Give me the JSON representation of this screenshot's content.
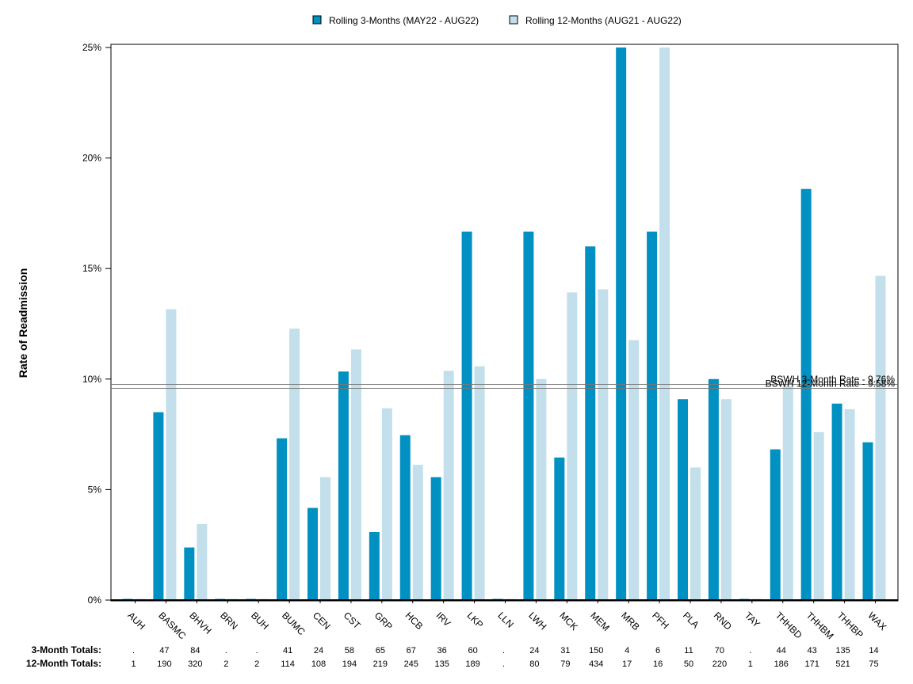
{
  "chart_data": {
    "type": "bar",
    "ylabel": "Rate of Readmission",
    "ylim": [
      0,
      25
    ],
    "y_ticks": [
      "0%",
      "5%",
      "10%",
      "15%",
      "20%",
      "25%"
    ],
    "categories": [
      "AUH",
      "BASMC",
      "BHVH",
      "BRN",
      "BUH",
      "BUMC",
      "CEN",
      "CST",
      "GRP",
      "HCB",
      "IRV",
      "LKP",
      "LLN",
      "LWH",
      "MCK",
      "MEM",
      "MRB",
      "PFH",
      "PLA",
      "RND",
      "TAY",
      "THHBD",
      "THHBM",
      "THHBP",
      "WAX"
    ],
    "series": [
      {
        "name": "Rolling 3-Months (MAY22 - AUG22)",
        "color": "#0091c2",
        "values": [
          0,
          8.5,
          2.38,
          0,
          0,
          7.32,
          4.17,
          10.34,
          3.08,
          7.46,
          5.56,
          16.67,
          0,
          16.67,
          6.45,
          16.0,
          25.0,
          16.67,
          9.09,
          10.0,
          0,
          6.82,
          18.6,
          8.89,
          7.14
        ]
      },
      {
        "name": "Rolling 12-Months (AUG21 - AUG22)",
        "color": "#c2dfeb",
        "values": [
          0,
          13.16,
          3.44,
          0,
          0,
          12.28,
          5.56,
          11.34,
          8.68,
          6.12,
          10.37,
          10.58,
          0,
          10.0,
          13.92,
          14.06,
          11.76,
          25.0,
          6.0,
          9.09,
          0,
          9.68,
          7.6,
          8.64,
          14.67
        ]
      }
    ],
    "reference_lines": [
      {
        "label": "BSWH 3-Month Rate - 9.76%",
        "value": 9.76
      },
      {
        "label": "BSWH 12-Month Rate - 9.58%",
        "value": 9.58
      }
    ],
    "legend_position": "top",
    "totals_rows": [
      {
        "label": "3-Month Totals:",
        "values": [
          ".",
          "47",
          "84",
          ".",
          ".",
          "41",
          "24",
          "58",
          "65",
          "67",
          "36",
          "60",
          ".",
          "24",
          "31",
          "150",
          "4",
          "6",
          "11",
          "70",
          ".",
          "44",
          "43",
          "135",
          "14"
        ]
      },
      {
        "label": "12-Month Totals:",
        "values": [
          "1",
          "190",
          "320",
          "2",
          "2",
          "114",
          "108",
          "194",
          "219",
          "245",
          "135",
          "189",
          ".",
          "80",
          "79",
          "434",
          "17",
          "16",
          "50",
          "220",
          "1",
          "186",
          "171",
          "521",
          "75"
        ]
      }
    ]
  }
}
